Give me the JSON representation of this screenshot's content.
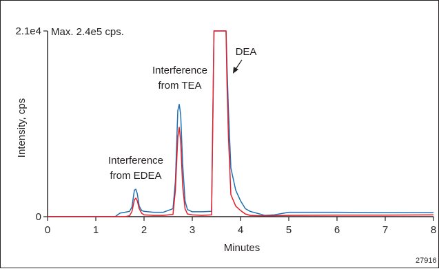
{
  "chart_data": {
    "type": "line",
    "xlabel": "Minutes",
    "ylabel": "Intensity, cps",
    "xlim": [
      0,
      8
    ],
    "ylim": [
      0,
      21000
    ],
    "x_ticks": [
      "0",
      "1",
      "2",
      "3",
      "4",
      "5",
      "6",
      "7",
      "8"
    ],
    "y_ticks": [
      "0",
      "2.1e4"
    ],
    "max_note": "Max. 2.4e5 cps.",
    "grid": false,
    "legend": "none",
    "figure_id": "27916",
    "annotations": [
      {
        "line1": "Interference",
        "line2": "from EDEA"
      },
      {
        "line1": "Interference",
        "line2": "from TEA"
      },
      {
        "line1": "DEA",
        "line2": ""
      }
    ],
    "series": [
      {
        "color": "#1f6fb2",
        "x": [
          0,
          0.5,
          1.0,
          1.4,
          1.5,
          1.6,
          1.7,
          1.75,
          1.8,
          1.83,
          1.86,
          1.9,
          1.95,
          2.0,
          2.2,
          2.4,
          2.6,
          2.65,
          2.7,
          2.73,
          2.76,
          2.8,
          2.85,
          2.9,
          3.0,
          3.2,
          3.4,
          3.45,
          3.5,
          3.55,
          3.6,
          3.65,
          3.7,
          3.72,
          3.75,
          3.8,
          3.9,
          4.0,
          4.1,
          4.2,
          4.4,
          4.5,
          4.7,
          4.9,
          5.0,
          6.0,
          7.0,
          8.0
        ],
        "y": [
          0,
          0,
          0,
          0,
          400,
          500,
          600,
          1100,
          3000,
          3100,
          2600,
          1200,
          700,
          600,
          500,
          500,
          900,
          4000,
          12000,
          12700,
          11500,
          6000,
          1800,
          800,
          550,
          550,
          600,
          21000,
          21000,
          21000,
          21000,
          21000,
          21000,
          17000,
          12000,
          5500,
          3000,
          1800,
          900,
          600,
          300,
          150,
          200,
          400,
          500,
          500,
          450,
          450
        ]
      },
      {
        "color": "#e41e2a",
        "x": [
          0,
          1.4,
          1.6,
          1.7,
          1.75,
          1.8,
          1.83,
          1.86,
          1.9,
          1.95,
          2.0,
          2.2,
          2.4,
          2.6,
          2.65,
          2.7,
          2.73,
          2.76,
          2.8,
          2.85,
          2.9,
          3.0,
          3.2,
          3.4,
          3.45,
          3.5,
          3.55,
          3.6,
          3.65,
          3.7,
          3.72,
          3.75,
          3.8,
          3.9,
          4.0,
          4.1,
          4.2,
          4.4,
          4.6,
          5.0,
          6.0,
          7.0,
          8.0
        ],
        "y": [
          0,
          0,
          0,
          100,
          600,
          1900,
          2100,
          1800,
          900,
          400,
          200,
          150,
          150,
          250,
          3000,
          9000,
          10100,
          8500,
          3500,
          900,
          300,
          200,
          150,
          200,
          21000,
          21000,
          21000,
          21000,
          21000,
          21000,
          15000,
          9000,
          2500,
          1200,
          700,
          300,
          150,
          100,
          100,
          150,
          180,
          180,
          200
        ]
      }
    ]
  }
}
